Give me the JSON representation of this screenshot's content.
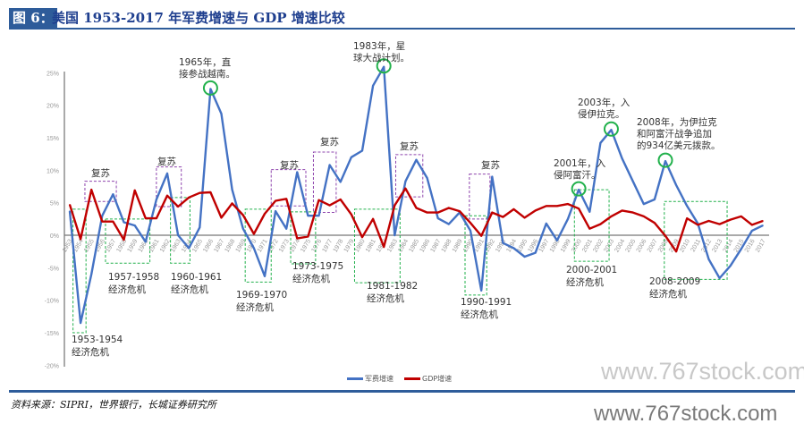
{
  "header": {
    "figure_no": "图 6：",
    "title": "美国 1953-2017 年军费增速与 GDP 增速比较"
  },
  "footer": {
    "source": "资料来源：SIPRI，世界银行，长城证券研究所"
  },
  "watermark": {
    "top": "www.767stock.com",
    "bottom": "www.767stock.com"
  },
  "colors": {
    "military": "#4472C4",
    "gdp": "#C00000",
    "crisis_box": "#22B14C",
    "recovery_box": "#8E44AD",
    "circle": "#22B14C"
  },
  "chart_data": {
    "type": "line",
    "title": "美国 1953-2017 年军费增速与 GDP 增速比较",
    "xlabel": "",
    "ylabel": "",
    "ylim": [
      -20,
      25
    ],
    "yticks": [
      "-20%",
      "-15%",
      "-10%",
      "-5%",
      "0%",
      "5%",
      "10%",
      "15%",
      "20%",
      "25%"
    ],
    "ytick_values": [
      -20,
      -15,
      -10,
      -5,
      0,
      5,
      10,
      15,
      20,
      25
    ],
    "x": [
      1953,
      1954,
      1955,
      1956,
      1957,
      1958,
      1959,
      1960,
      1961,
      1962,
      1963,
      1964,
      1965,
      1966,
      1967,
      1968,
      1969,
      1970,
      1971,
      1972,
      1973,
      1974,
      1975,
      1976,
      1977,
      1978,
      1979,
      1980,
      1981,
      1982,
      1983,
      1984,
      1985,
      1986,
      1987,
      1988,
      1989,
      1990,
      1991,
      1992,
      1993,
      1994,
      1995,
      1996,
      1997,
      1998,
      1999,
      2000,
      2001,
      2002,
      2003,
      2004,
      2005,
      2006,
      2007,
      2008,
      2009,
      2010,
      2011,
      2012,
      2013,
      2014,
      2015,
      2016,
      2017
    ],
    "legend_position": "bottom",
    "series": [
      {
        "name": "军费增速",
        "color": "#4472C4",
        "values": [
          3.7,
          -13.5,
          -6,
          3,
          6.3,
          2,
          1.5,
          -1,
          5.5,
          9.5,
          0,
          -2,
          1.2,
          22.5,
          18.7,
          7,
          1,
          -2,
          -6.3,
          3.7,
          1,
          9.7,
          3,
          3,
          10.8,
          8.2,
          12,
          13,
          23,
          25.9,
          0,
          8.3,
          11.6,
          8.8,
          2.6,
          1.7,
          3.5,
          0.7,
          -8.5,
          9,
          -1.2,
          -2,
          -3.3,
          -2.7,
          1.8,
          -0.8,
          2.5,
          7,
          3.6,
          14.2,
          16.2,
          11.8,
          8.3,
          4.8,
          5.5,
          11.4,
          7.7,
          4.5,
          1.8,
          -3.7,
          -6.6,
          -4.7,
          -2.1,
          0.7,
          1.5
        ]
      },
      {
        "name": "GDP增速",
        "color": "#C00000",
        "values": [
          4.7,
          -0.6,
          7,
          2.1,
          2.1,
          -0.7,
          6.9,
          2.6,
          2.6,
          6.1,
          4.4,
          5.8,
          6.5,
          6.6,
          2.7,
          4.9,
          3.1,
          0.2,
          3.3,
          5.3,
          5.6,
          -0.5,
          -0.2,
          5.4,
          4.6,
          5.5,
          3.2,
          -0.3,
          2.5,
          -1.8,
          4.6,
          7.2,
          4.2,
          3.5,
          3.5,
          4.2,
          3.7,
          1.9,
          -0.1,
          3.5,
          2.8,
          4.0,
          2.7,
          3.8,
          4.5,
          4.5,
          4.8,
          4.1,
          1.0,
          1.7,
          2.9,
          3.8,
          3.5,
          2.9,
          1.9,
          -0.1,
          -2.5,
          2.6,
          1.6,
          2.2,
          1.7,
          2.4,
          2.9,
          1.6,
          2.2
        ]
      }
    ],
    "annotations": {
      "crises": [
        {
          "years": "1953-1954",
          "label1": "1953-1954",
          "label2": "经济危机"
        },
        {
          "years": "1957-1958",
          "label1": "1957-1958",
          "label2": "经济危机"
        },
        {
          "years": "1960-1961",
          "label1": "1960-1961",
          "label2": "经济危机"
        },
        {
          "years": "1969-1970",
          "label1": "1969-1970",
          "label2": "经济危机"
        },
        {
          "years": "1973-1975",
          "label1": "1973-1975",
          "label2": "经济危机"
        },
        {
          "years": "1981-1982",
          "label1": "1981-1982",
          "label2": "经济危机"
        },
        {
          "years": "1990-1991",
          "label1": "1990-1991",
          "label2": "经济危机"
        },
        {
          "years": "2000-2001",
          "label1": "2000-2001",
          "label2": "经济危机"
        },
        {
          "years": "2008-2009",
          "label1": "2008-2009",
          "label2": "经济危机"
        }
      ],
      "recoveries": [
        "复苏",
        "复苏",
        "复苏",
        "复苏",
        "复苏",
        "复苏"
      ],
      "events": [
        {
          "lines": [
            "1965年，直",
            "接参战越南。"
          ]
        },
        {
          "lines": [
            "1983年，星",
            "球大战计划。"
          ]
        },
        {
          "lines": [
            "2001年，入",
            "侵阿富汗。"
          ]
        },
        {
          "lines": [
            "2003年，入",
            "侵伊拉克。"
          ]
        },
        {
          "lines": [
            "2008年，为伊拉克",
            "和阿富汗战争追加",
            "的934亿美元拨款。"
          ]
        }
      ]
    }
  }
}
